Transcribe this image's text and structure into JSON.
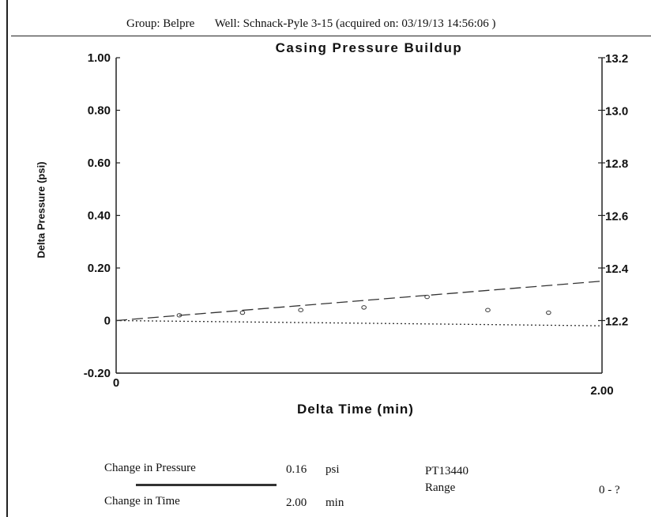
{
  "header": {
    "group": "Group: Belpre",
    "well": "Well: Schnack-Pyle 3-15 (acquired on: 03/19/13 14:56:06 )"
  },
  "chart_data": {
    "type": "scatter",
    "title": "Casing Pressure Buildup",
    "xlabel": "Delta Time (min)",
    "ylabel": "Delta Pressure (psi)",
    "xlim": [
      0,
      2.0
    ],
    "ylim": [
      -0.2,
      1.0
    ],
    "y2lim": [
      12.0,
      13.2
    ],
    "x_tick_labels": [
      "0",
      "2.00"
    ],
    "y_tick_labels": [
      "1.00",
      "0.80",
      "0.60",
      "0.40",
      "0.20",
      "0",
      "-0.20"
    ],
    "y_ticks": [
      1.0,
      0.8,
      0.6,
      0.4,
      0.2,
      0.0,
      -0.2
    ],
    "y2_tick_labels": [
      "13.2",
      "13.0",
      "12.8",
      "12.6",
      "12.4",
      "12.2"
    ],
    "y2_ticks": [
      13.2,
      13.0,
      12.8,
      12.6,
      12.4,
      12.2
    ],
    "series": [
      {
        "style": "points",
        "x": [
          0.26,
          0.52,
          0.76,
          1.02,
          1.28,
          1.53,
          1.78
        ],
        "y": [
          0.02,
          0.03,
          0.04,
          0.05,
          0.09,
          0.04,
          0.03
        ]
      },
      {
        "style": "dashed",
        "x": [
          0,
          2.0
        ],
        "y": [
          0.0,
          0.15
        ]
      },
      {
        "style": "dotted",
        "x": [
          0,
          2.0
        ],
        "y": [
          0.0,
          -0.02
        ]
      }
    ]
  },
  "footer": {
    "change_pressure_label": "Change in Pressure",
    "change_pressure_value": "0.16",
    "change_pressure_unit": "psi",
    "change_time_label": "Change in Time",
    "change_time_value": "2.00",
    "change_time_unit": "min",
    "sensor_id": "PT13440",
    "range_label": "Range",
    "range_value": "0 - ?"
  }
}
